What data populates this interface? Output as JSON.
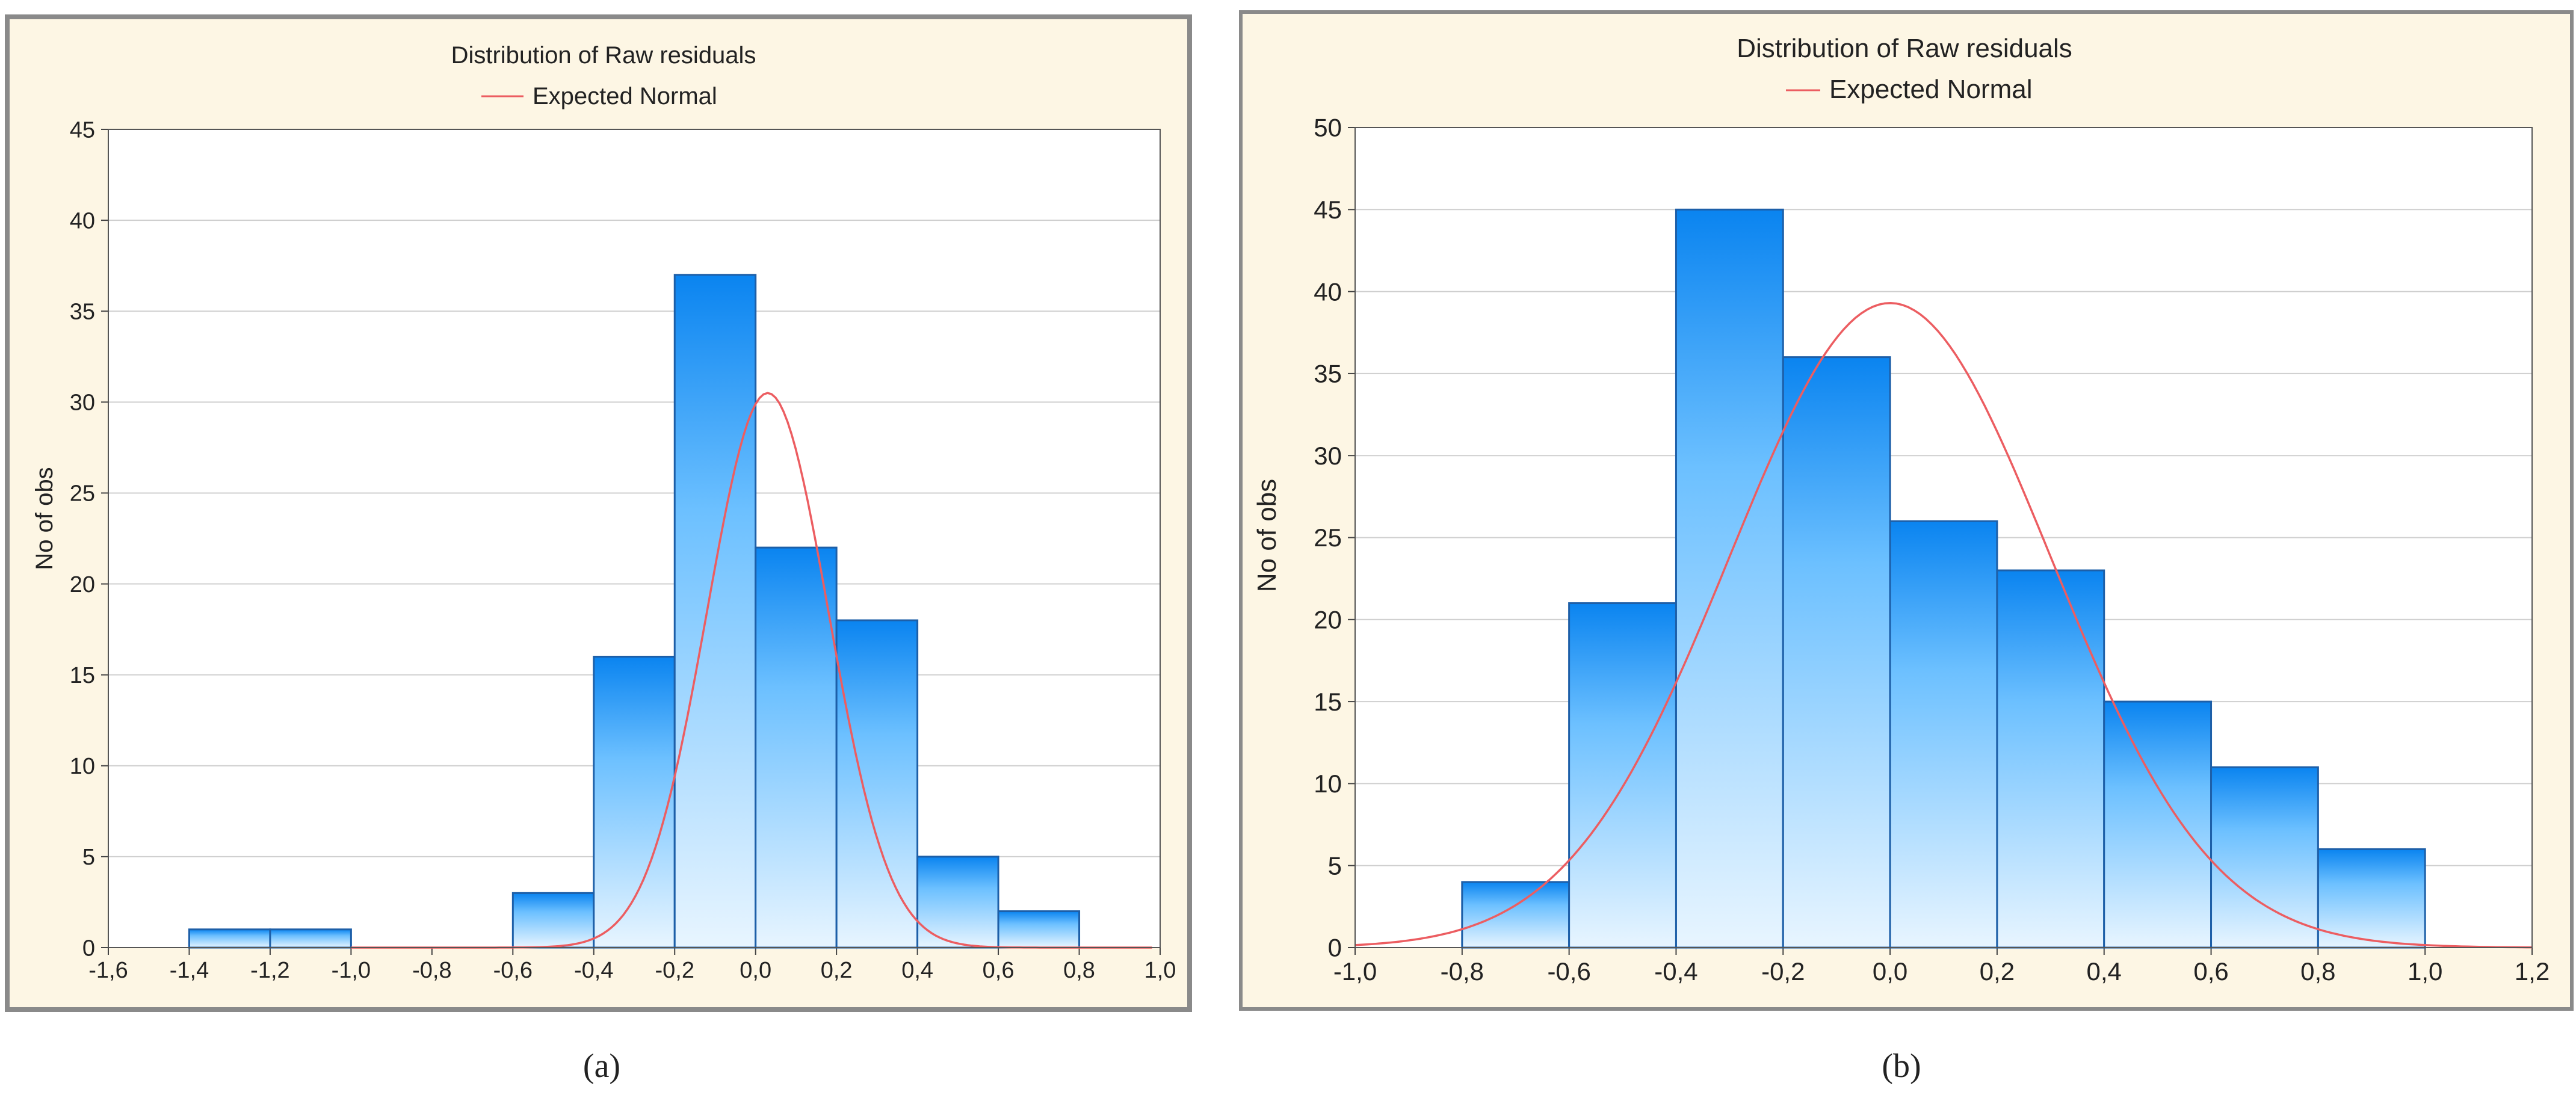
{
  "colors": {
    "panel_bg": "#fdf6e4",
    "panel_border": "#8a8a8a",
    "plot_bg": "#ffffff",
    "grid": "#cfcfcf",
    "bar_stroke": "#1d5fa8",
    "bar_top": "#0a84f0",
    "bar_mid": "#6cc0ff",
    "bar_bottom": "#e8f5ff",
    "curve": "#ec5d61",
    "text": "#222222"
  },
  "chart_data": [
    {
      "type": "bar",
      "panel_label": "(a)",
      "title": "Distribution of Raw residuals",
      "legend": "Expected Normal",
      "legend_position": "top-center",
      "xlabel": "",
      "ylabel": "No of obs",
      "xlim": [
        -1.6,
        1.0
      ],
      "ylim": [
        0,
        45
      ],
      "grid": true,
      "x_ticks": [
        "-1,6",
        "-1,4",
        "-1,2",
        "-1,0",
        "-0,8",
        "-0,6",
        "-0,4",
        "-0,2",
        "0,0",
        "0,2",
        "0,4",
        "0,6",
        "0,8",
        "1,0"
      ],
      "y_ticks": [
        "0",
        "5",
        "10",
        "15",
        "20",
        "25",
        "30",
        "35",
        "40",
        "45"
      ],
      "bins": [
        {
          "from": -1.4,
          "to": -1.2,
          "count": 1
        },
        {
          "from": -1.2,
          "to": -1.0,
          "count": 1
        },
        {
          "from": -0.6,
          "to": -0.4,
          "count": 3
        },
        {
          "from": -0.4,
          "to": -0.2,
          "count": 16
        },
        {
          "from": -0.2,
          "to": 0.0,
          "count": 37
        },
        {
          "from": 0.0,
          "to": 0.2,
          "count": 22
        },
        {
          "from": 0.2,
          "to": 0.4,
          "count": 18
        },
        {
          "from": 0.4,
          "to": 0.6,
          "count": 5
        },
        {
          "from": 0.6,
          "to": 0.8,
          "count": 2
        }
      ],
      "expected_normal": {
        "mean": 0.03,
        "sd": 0.15,
        "peak": 30.5,
        "x_from": -1.0,
        "x_to": 0.98
      }
    },
    {
      "type": "bar",
      "panel_label": "(b)",
      "title": "Distribution of Raw residuals",
      "legend": "Expected Normal",
      "legend_position": "top-center",
      "xlabel": "",
      "ylabel": "No of obs",
      "xlim": [
        -1.0,
        1.2
      ],
      "ylim": [
        0,
        50
      ],
      "grid": true,
      "x_ticks": [
        "-1,0",
        "-0,8",
        "-0,6",
        "-0,4",
        "-0,2",
        "0,0",
        "0,2",
        "0,4",
        "0,6",
        "0,8",
        "1,0",
        "1,2"
      ],
      "y_ticks": [
        "0",
        "5",
        "10",
        "15",
        "20",
        "25",
        "30",
        "35",
        "40",
        "45",
        "50"
      ],
      "bins": [
        {
          "from": -0.8,
          "to": -0.6,
          "count": 4
        },
        {
          "from": -0.6,
          "to": -0.4,
          "count": 21
        },
        {
          "from": -0.4,
          "to": -0.2,
          "count": 45
        },
        {
          "from": -0.2,
          "to": 0.0,
          "count": 36
        },
        {
          "from": 0.0,
          "to": 0.2,
          "count": 26
        },
        {
          "from": 0.2,
          "to": 0.4,
          "count": 23
        },
        {
          "from": 0.4,
          "to": 0.6,
          "count": 15
        },
        {
          "from": 0.6,
          "to": 0.8,
          "count": 11
        },
        {
          "from": 0.8,
          "to": 1.0,
          "count": 6
        }
      ],
      "expected_normal": {
        "mean": 0.0,
        "sd": 0.3,
        "peak": 39.3,
        "x_from": -1.0,
        "x_to": 1.2
      }
    }
  ]
}
